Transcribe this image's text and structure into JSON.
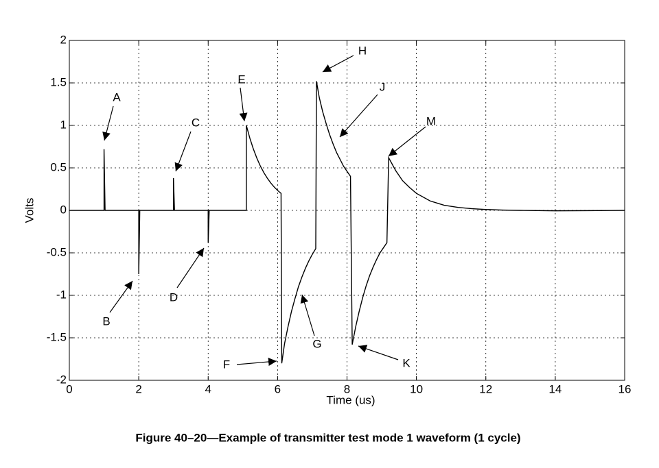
{
  "chart_data": {
    "type": "line",
    "x_label": "Time (us)",
    "y_label": "Volts",
    "caption": "Figure 40–20—Example of transmitter test mode 1 waveform (1 cycle)",
    "xlim": [
      0,
      16
    ],
    "ylim": [
      -2,
      2
    ],
    "xticks": [
      0,
      2,
      4,
      6,
      8,
      10,
      12,
      14,
      16
    ],
    "yticks": [
      -2,
      -1.5,
      -1,
      -0.5,
      0,
      0.5,
      1,
      1.5,
      2
    ],
    "grid": true,
    "color": "#000000",
    "x": [
      0,
      1,
      1,
      1.03,
      2,
      2,
      2.03,
      3,
      3,
      3.03,
      4,
      4,
      4.03,
      5.1,
      5.1,
      5.2,
      5.3,
      5.4,
      5.5,
      5.6,
      5.7,
      5.8,
      5.9,
      6.0,
      6.1,
      6.12,
      6.2,
      6.3,
      6.4,
      6.5,
      6.6,
      6.7,
      6.8,
      6.9,
      7.0,
      7.1,
      7.12,
      7.2,
      7.3,
      7.4,
      7.5,
      7.6,
      7.7,
      7.8,
      7.9,
      8.0,
      8.1,
      8.15,
      8.25,
      8.35,
      8.45,
      8.55,
      8.65,
      8.75,
      8.85,
      8.95,
      9.05,
      9.15,
      9.2,
      9.4,
      9.6,
      9.8,
      10,
      10.4,
      10.8,
      11.2,
      11.6,
      12,
      12.5,
      13,
      14,
      15,
      16
    ],
    "values": [
      0,
      0,
      0.72,
      0,
      0,
      -0.75,
      0,
      0,
      0.38,
      0,
      0,
      -0.38,
      0,
      0,
      1.0,
      0.85,
      0.725,
      0.617,
      0.525,
      0.447,
      0.381,
      0.324,
      0.276,
      0.235,
      0.2,
      -1.8,
      -1.57,
      -1.37,
      -1.19,
      -1.04,
      -0.9,
      -0.785,
      -0.684,
      -0.595,
      -0.518,
      -0.45,
      1.52,
      1.33,
      1.16,
      1.02,
      0.89,
      0.78,
      0.68,
      0.6,
      0.52,
      0.46,
      0.4,
      -1.58,
      -1.37,
      -1.19,
      -1.03,
      -0.89,
      -0.77,
      -0.67,
      -0.58,
      -0.5,
      -0.44,
      -0.38,
      0.62,
      0.47,
      0.35,
      0.27,
      0.2,
      0.11,
      0.06,
      0.035,
      0.02,
      0.01,
      0.003,
      0,
      -0.005,
      -0.003,
      0
    ],
    "annotations": [
      "A",
      "B",
      "C",
      "D",
      "E",
      "F",
      "G",
      "H",
      "J",
      "K",
      "M"
    ]
  }
}
